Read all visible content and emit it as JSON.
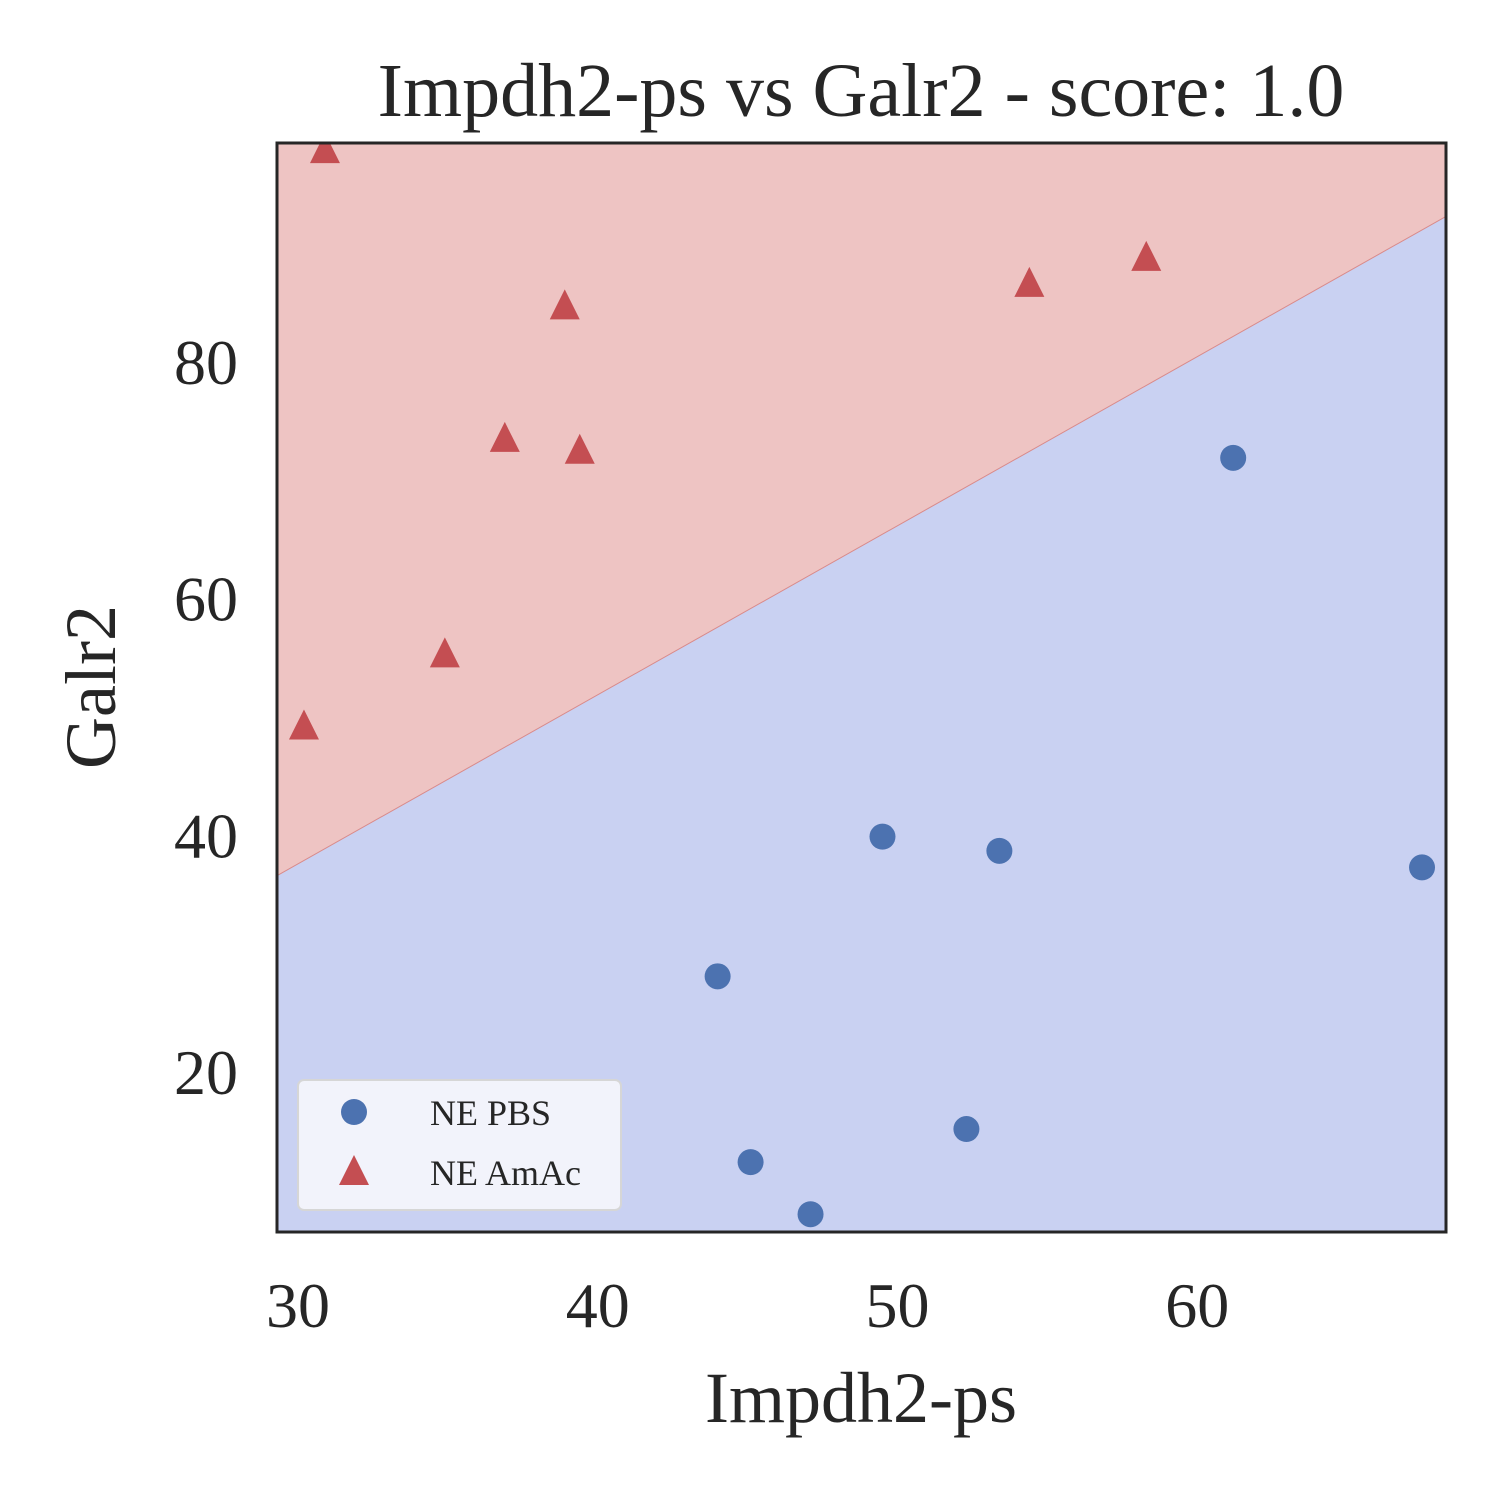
{
  "chart_data": {
    "type": "scatter",
    "title": "Impdh2-ps vs Galr2 - score: 1.0",
    "xlabel": "Impdh2-ps",
    "ylabel": "Galr2",
    "xlim": [
      29.3,
      68.3
    ],
    "ylim": [
      6.5,
      98.5
    ],
    "xticks": [
      30,
      40,
      50,
      60
    ],
    "yticks": [
      20,
      40,
      60,
      80
    ],
    "grid": false,
    "legend_position": "lower-left",
    "decision_boundary": {
      "x": [
        29.3,
        68.3
      ],
      "y": [
        36.6,
        92.3
      ],
      "above_label": "NE AmAc",
      "below_label": "NE PBS",
      "above_color": "#eec4c3",
      "below_color": "#c9d1f2"
    },
    "series": [
      {
        "name": "NE PBS",
        "marker": "circle",
        "color": "#4c72b0",
        "points": [
          [
            61.2,
            71.9
          ],
          [
            49.5,
            39.9
          ],
          [
            53.4,
            38.7
          ],
          [
            67.5,
            37.3
          ],
          [
            44.0,
            28.1
          ],
          [
            52.3,
            15.2
          ],
          [
            45.1,
            12.4
          ],
          [
            47.1,
            8.0
          ]
        ]
      },
      {
        "name": "NE AmAc",
        "marker": "triangle",
        "color": "#c44e52",
        "points": [
          [
            30.9,
            97.9
          ],
          [
            58.3,
            88.8
          ],
          [
            54.4,
            86.6
          ],
          [
            38.9,
            84.7
          ],
          [
            36.9,
            73.5
          ],
          [
            39.4,
            72.5
          ],
          [
            34.9,
            55.3
          ],
          [
            30.2,
            49.2
          ]
        ]
      }
    ]
  }
}
